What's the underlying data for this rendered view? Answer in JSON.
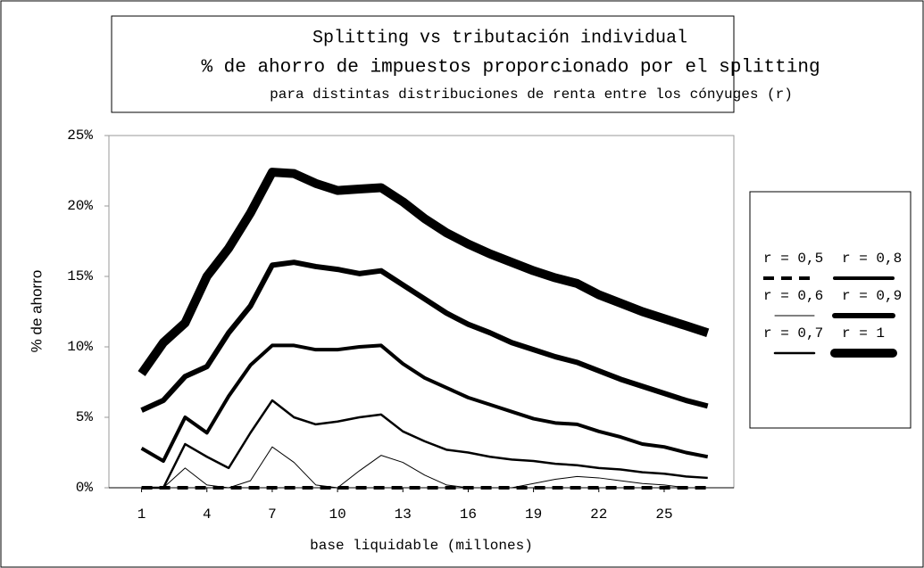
{
  "chart_data": {
    "type": "line",
    "title": "Splitting vs tributación individual",
    "subtitle": "% de ahorro de impuestos proporcionado por el splitting",
    "note": "para distintas distribuciones de renta entre los cónyuges (r)",
    "x_label": "base liquidable (millones)",
    "y_label": "% de ahorro",
    "x": [
      1,
      2,
      3,
      4,
      5,
      6,
      7,
      8,
      9,
      10,
      11,
      12,
      13,
      14,
      15,
      16,
      17,
      18,
      19,
      20,
      21,
      22,
      23,
      24,
      25,
      26,
      27
    ],
    "xlim": [
      -0.5,
      28.2
    ],
    "xticks": [
      1,
      4,
      7,
      10,
      13,
      16,
      19,
      22,
      25
    ],
    "ylim": [
      0,
      25
    ],
    "yticks": [
      {
        "value": 0,
        "label": "0%"
      },
      {
        "value": 5,
        "label": "5%"
      },
      {
        "value": 10,
        "label": "10%"
      },
      {
        "value": 15,
        "label": "15%"
      },
      {
        "value": 20,
        "label": "20%"
      },
      {
        "value": 25,
        "label": "25%"
      }
    ],
    "series": [
      {
        "name": "r = 0,5",
        "color": "#000000",
        "width": 4,
        "dashed": true,
        "values": [
          0,
          0,
          0,
          0,
          0,
          0,
          0,
          0,
          0,
          0,
          0,
          0,
          0,
          0,
          0,
          0,
          0,
          0,
          0,
          0,
          0,
          0,
          0,
          0,
          0,
          0,
          0
        ]
      },
      {
        "name": "r = 0,6",
        "color": "#000000",
        "width": 1,
        "values": [
          0,
          0,
          1.4,
          0.2,
          0,
          0.5,
          2.9,
          1.8,
          0.2,
          0,
          1.2,
          2.3,
          1.8,
          0.9,
          0.2,
          0,
          0,
          0,
          0.3,
          0.6,
          0.8,
          0.7,
          0.5,
          0.3,
          0.2,
          0,
          0
        ]
      },
      {
        "name": "r = 0,7",
        "color": "#000000",
        "width": 2.5,
        "values": [
          0,
          0,
          3.1,
          2.2,
          1.4,
          3.9,
          6.2,
          5.0,
          4.5,
          4.7,
          5.0,
          5.2,
          4.0,
          3.3,
          2.7,
          2.5,
          2.2,
          2.0,
          1.9,
          1.7,
          1.6,
          1.4,
          1.3,
          1.1,
          1.0,
          0.8,
          0.7
        ]
      },
      {
        "name": "r = 0,8",
        "color": "#000000",
        "width": 4,
        "values": [
          2.8,
          1.9,
          5,
          3.9,
          6.5,
          8.7,
          10.1,
          10.1,
          9.8,
          9.8,
          10,
          10.1,
          8.8,
          7.8,
          7.1,
          6.4,
          5.9,
          5.4,
          4.9,
          4.6,
          4.5,
          4.0,
          3.6,
          3.1,
          2.9,
          2.5,
          2.2
        ]
      },
      {
        "name": "r = 0,9",
        "color": "#000000",
        "width": 6,
        "values": [
          5.5,
          6.2,
          7.9,
          8.6,
          11,
          12.9,
          15.8,
          16,
          15.7,
          15.5,
          15.2,
          15.4,
          14.4,
          13.4,
          12.4,
          11.6,
          11,
          10.3,
          9.8,
          9.3,
          8.9,
          8.3,
          7.7,
          7.2,
          6.7,
          6.2,
          5.8
        ]
      },
      {
        "name": "r = 1",
        "color": "#000000",
        "width": 10,
        "values": [
          8.1,
          10.3,
          11.7,
          15,
          17,
          19.5,
          22.4,
          22.3,
          21.6,
          21.1,
          21.2,
          21.3,
          20.3,
          19.1,
          18.1,
          17.3,
          16.6,
          16,
          15.4,
          14.9,
          14.5,
          13.7,
          13.1,
          12.5,
          12,
          11.5,
          11.0
        ]
      }
    ]
  }
}
